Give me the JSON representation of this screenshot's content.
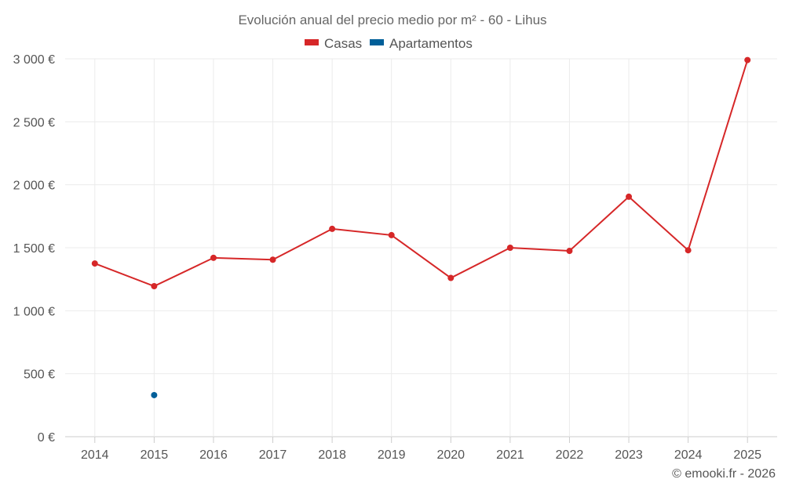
{
  "chart_data": {
    "type": "line",
    "title": "Evolución anual del precio medio por m² - 60 - Lihus",
    "categories": [
      "2014",
      "2015",
      "2016",
      "2017",
      "2018",
      "2019",
      "2020",
      "2021",
      "2022",
      "2023",
      "2024",
      "2025"
    ],
    "series": [
      {
        "name": "Casas",
        "color": "#d62728",
        "values": [
          1375,
          1195,
          1420,
          1405,
          1650,
          1600,
          1260,
          1500,
          1475,
          1905,
          1480,
          2990
        ]
      },
      {
        "name": "Apartamentos",
        "color": "#005f99",
        "values": [
          null,
          330,
          null,
          null,
          null,
          null,
          null,
          null,
          null,
          null,
          null,
          null
        ]
      }
    ],
    "y_ticks": [
      "0 €",
      "500 €",
      "1 000 €",
      "1 500 €",
      "2 000 €",
      "2 500 €",
      "3 000 €"
    ],
    "ylim": [
      0,
      3000
    ],
    "grid": true,
    "legend_position": "top-center"
  },
  "credit": "© emooki.fr - 2026"
}
